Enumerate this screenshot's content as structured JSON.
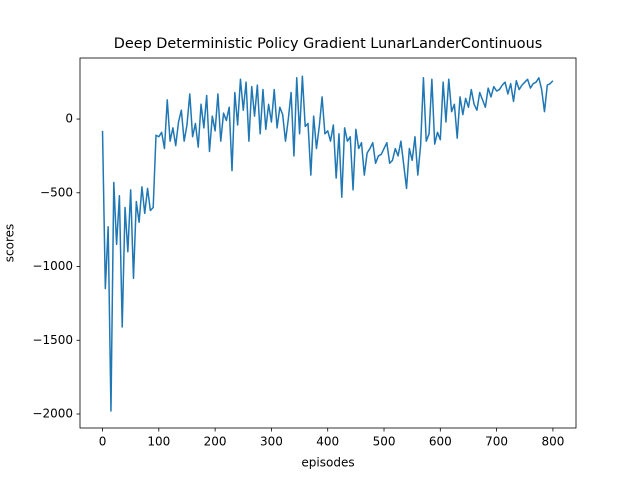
{
  "chart_data": {
    "type": "line",
    "title": "Deep Deterministic Policy Gradient LunarLanderContinuous",
    "xlabel": "episodes",
    "ylabel": "scores",
    "color": "#1f77b4",
    "xlim": [
      -40,
      841
    ],
    "ylim": [
      -2095,
      414
    ],
    "xticks": [
      0,
      100,
      200,
      300,
      400,
      500,
      600,
      700,
      800
    ],
    "yticks": [
      {
        "value": -2000,
        "label": "−2000"
      },
      {
        "value": -1500,
        "label": "−1500"
      },
      {
        "value": -1000,
        "label": "−1000"
      },
      {
        "value": -500,
        "label": "−500"
      },
      0
    ],
    "x": [
      0,
      5,
      10,
      15,
      20,
      25,
      30,
      35,
      40,
      45,
      50,
      55,
      60,
      65,
      70,
      75,
      80,
      85,
      90,
      95,
      100,
      105,
      110,
      115,
      120,
      125,
      130,
      135,
      140,
      145,
      150,
      155,
      160,
      165,
      170,
      175,
      180,
      185,
      190,
      195,
      200,
      205,
      210,
      215,
      220,
      225,
      230,
      235,
      240,
      245,
      250,
      255,
      260,
      265,
      270,
      275,
      280,
      285,
      290,
      295,
      300,
      305,
      310,
      315,
      320,
      325,
      330,
      335,
      340,
      345,
      350,
      355,
      360,
      365,
      370,
      375,
      380,
      385,
      390,
      395,
      400,
      405,
      410,
      415,
      420,
      425,
      430,
      435,
      440,
      445,
      450,
      455,
      460,
      465,
      470,
      475,
      480,
      485,
      490,
      495,
      500,
      505,
      510,
      515,
      520,
      525,
      530,
      535,
      540,
      545,
      550,
      555,
      560,
      565,
      570,
      575,
      580,
      585,
      590,
      595,
      600,
      605,
      610,
      615,
      620,
      625,
      630,
      635,
      640,
      645,
      650,
      655,
      660,
      665,
      670,
      675,
      680,
      685,
      690,
      695,
      700,
      705,
      710,
      715,
      720,
      725,
      730,
      735,
      740,
      745,
      750,
      755,
      760,
      765,
      770,
      775,
      780,
      785,
      790,
      795,
      800
    ],
    "values": [
      -80,
      -1150,
      -730,
      -1980,
      -430,
      -850,
      -520,
      -1410,
      -600,
      -900,
      -480,
      -1080,
      -560,
      -700,
      -460,
      -640,
      -470,
      -620,
      -600,
      -110,
      -120,
      -90,
      -200,
      130,
      -150,
      -60,
      -180,
      -20,
      60,
      -150,
      -40,
      170,
      -120,
      -30,
      -190,
      100,
      -60,
      160,
      -220,
      20,
      -80,
      170,
      -150,
      40,
      -10,
      80,
      -350,
      180,
      -40,
      270,
      60,
      250,
      -150,
      220,
      20,
      230,
      -100,
      200,
      -70,
      100,
      -20,
      200,
      -60,
      80,
      30,
      -150,
      0,
      180,
      -250,
      280,
      -100,
      290,
      -50,
      -30,
      -380,
      20,
      -200,
      -50,
      150,
      -100,
      -80,
      -150,
      -40,
      -400,
      -100,
      -530,
      -60,
      -150,
      -120,
      -480,
      -70,
      -200,
      -160,
      -380,
      -230,
      -200,
      -160,
      -300,
      -250,
      -240,
      -200,
      -160,
      -300,
      -280,
      -200,
      -250,
      -150,
      -310,
      -470,
      -200,
      -280,
      -120,
      -380,
      -180,
      280,
      -150,
      -100,
      270,
      -170,
      -90,
      -140,
      250,
      -20,
      270,
      50,
      100,
      -130,
      150,
      30,
      140,
      80,
      200,
      100,
      60,
      180,
      130,
      80,
      210,
      150,
      220,
      190,
      200,
      230,
      250,
      170,
      240,
      120,
      260,
      200,
      230,
      250,
      270,
      210,
      240,
      250,
      280,
      200,
      50,
      230,
      240,
      260
    ]
  }
}
